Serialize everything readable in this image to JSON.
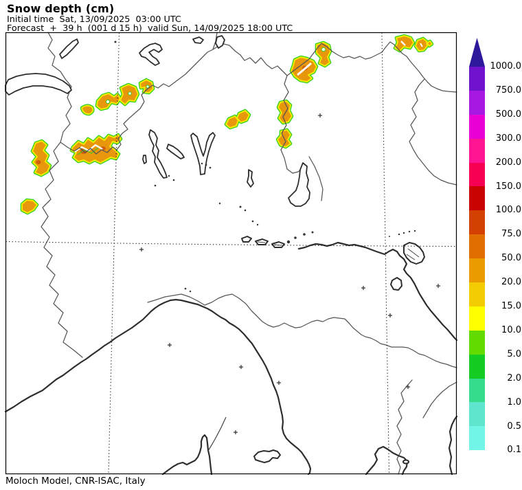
{
  "header": {
    "title": "Snow depth (cm)",
    "line_initial": "Initial time  Sat, 13/09/2025  03:00 UTC",
    "line_forecast": "Forecast  +  39 h  (001 d 15 h)  valid Sun, 14/09/2025 18:00 UTC"
  },
  "footer": {
    "credit": "Moloch Model, CNR-ISAC, Italy"
  },
  "legend": {
    "unit": "cm",
    "arrow_color": "#2e189b",
    "bands": [
      {
        "label": "1000.0",
        "color": "#6f13cf"
      },
      {
        "label": "750.0",
        "color": "#a718e3"
      },
      {
        "label": "500.0",
        "color": "#e900d6"
      },
      {
        "label": "300.0",
        "color": "#ff1493"
      },
      {
        "label": "200.0",
        "color": "#f70053"
      },
      {
        "label": "150.0",
        "color": "#c90400"
      },
      {
        "label": "100.0",
        "color": "#d44000"
      },
      {
        "label": "75.0",
        "color": "#e06e00"
      },
      {
        "label": "50.0",
        "color": "#ea9b00"
      },
      {
        "label": "20.0",
        "color": "#f2cb00"
      },
      {
        "label": "15.0",
        "color": "#ffff00"
      },
      {
        "label": "10.0",
        "color": "#62dc00"
      },
      {
        "label": "5.0",
        "color": "#15cc25"
      },
      {
        "label": "2.0",
        "color": "#35dc8b"
      },
      {
        "label": "1.0",
        "color": "#5fe5cd"
      },
      {
        "label": "0.5",
        "color": "#72f5e6"
      }
    ],
    "bottom_label": "0.1"
  },
  "map": {
    "colors": {
      "snow_fill": "#e8960c",
      "snow_heavy": "#d2600a",
      "contour_yellow": "#f6e800",
      "contour_green": "#2fd01e",
      "coast": "#2e2e2e",
      "border": "#555555"
    }
  }
}
